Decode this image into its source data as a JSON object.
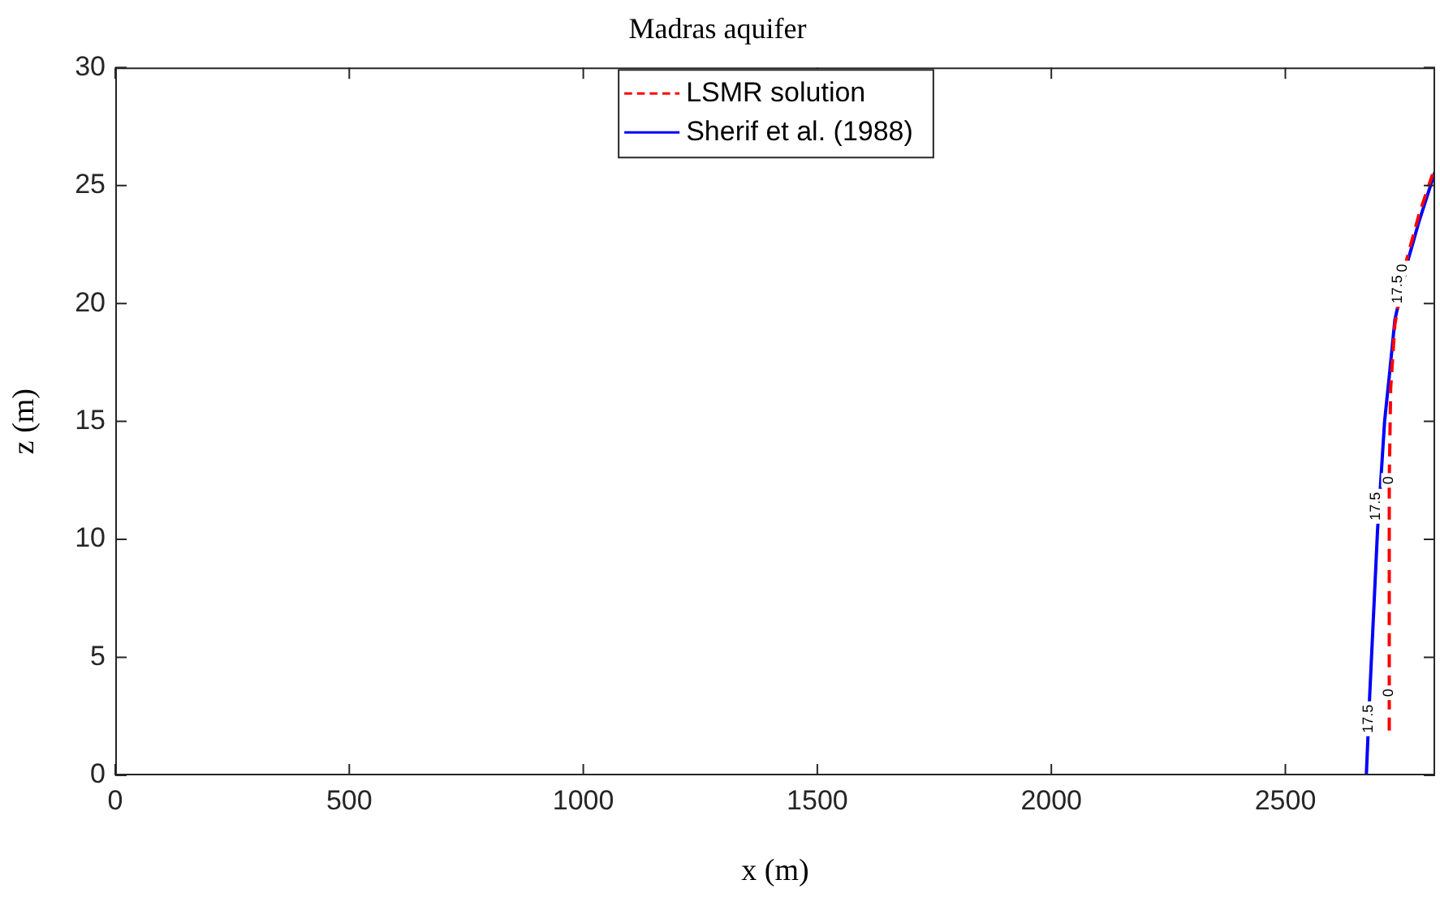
{
  "chart_data": {
    "type": "line",
    "title": "Madras aquifer",
    "xlabel": "x (m)",
    "ylabel": "z (m)",
    "xlim": [
      0,
      2820
    ],
    "xticks": [
      0,
      500,
      1000,
      1500,
      2000,
      2500
    ],
    "ylim": [
      0,
      30
    ],
    "yticks": [
      0,
      5,
      10,
      15,
      20,
      25,
      30
    ],
    "grid": false,
    "legend": "top",
    "marker": "none",
    "series": [
      {
        "name": "LSMR solution",
        "color": "#ff0000",
        "line_style": "dashed",
        "x": [
          2722,
          2722,
          2722,
          2725,
          2734,
          2757,
          2786,
          2815
        ],
        "values": [
          1.9,
          8,
          12.5,
          16.4,
          19.1,
          21.7,
          23.8,
          25.5
        ]
      },
      {
        "name": "Sherif et al. (1988)",
        "color": "#0000ff",
        "line_style": "solid",
        "x": [
          2673,
          2680,
          2697,
          2703,
          2712,
          2722,
          2734,
          2763,
          2786,
          2820
        ],
        "values": [
          0,
          3.3,
          10.4,
          12.2,
          15,
          16.9,
          19.3,
          21.9,
          23.5,
          25.6
        ]
      }
    ],
    "annotations": [
      {
        "text": "17.5",
        "x": 2677,
        "y": 2.4
      },
      {
        "text": "17.5",
        "x": 2693,
        "y": 11.4
      },
      {
        "text": "0",
        "x": 2722,
        "y": 3.5
      },
      {
        "text": "0",
        "x": 2722,
        "y": 12.5
      },
      {
        "text": "17.5",
        "x": 2740,
        "y": 20.6
      },
      {
        "text": "0",
        "x": 2750,
        "y": 21.5
      }
    ]
  }
}
